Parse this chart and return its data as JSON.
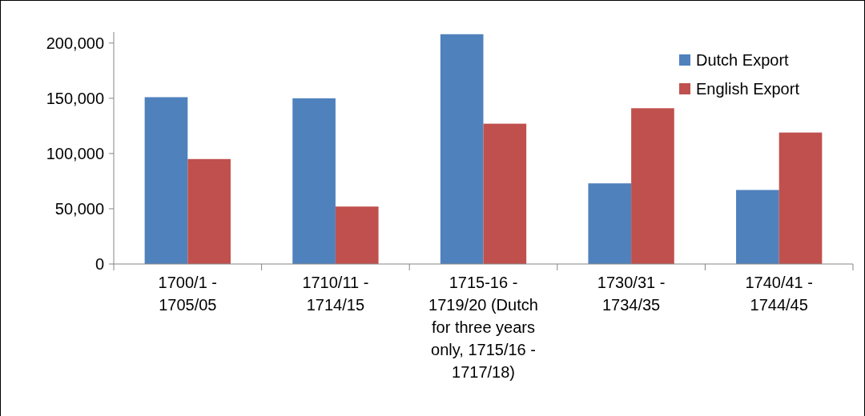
{
  "chart_data": {
    "type": "bar",
    "categories": [
      "1700/1 - 1705/05",
      "1710/11 - 1714/15",
      "1715-16 - 1719/20 (Dutch for three years only, 1715/16 - 1717/18)",
      "1730/31 - 1734/35",
      "1740/41 - 1744/45"
    ],
    "series": [
      {
        "name": "Dutch Export",
        "color": "#4f81bd",
        "values": [
          151000,
          150000,
          208000,
          73000,
          67000
        ]
      },
      {
        "name": "English Export",
        "color": "#c0504d",
        "values": [
          95000,
          52000,
          127000,
          141000,
          119000
        ]
      }
    ],
    "ylim": [
      0,
      210000
    ],
    "yticks": [
      {
        "value": 0,
        "label": "0"
      },
      {
        "value": 50000,
        "label": "50,000"
      },
      {
        "value": 100000,
        "label": "100,000"
      },
      {
        "value": 150000,
        "label": "150,000"
      },
      {
        "value": 200000,
        "label": "200,000"
      }
    ],
    "grid": false,
    "legend": "top right"
  }
}
